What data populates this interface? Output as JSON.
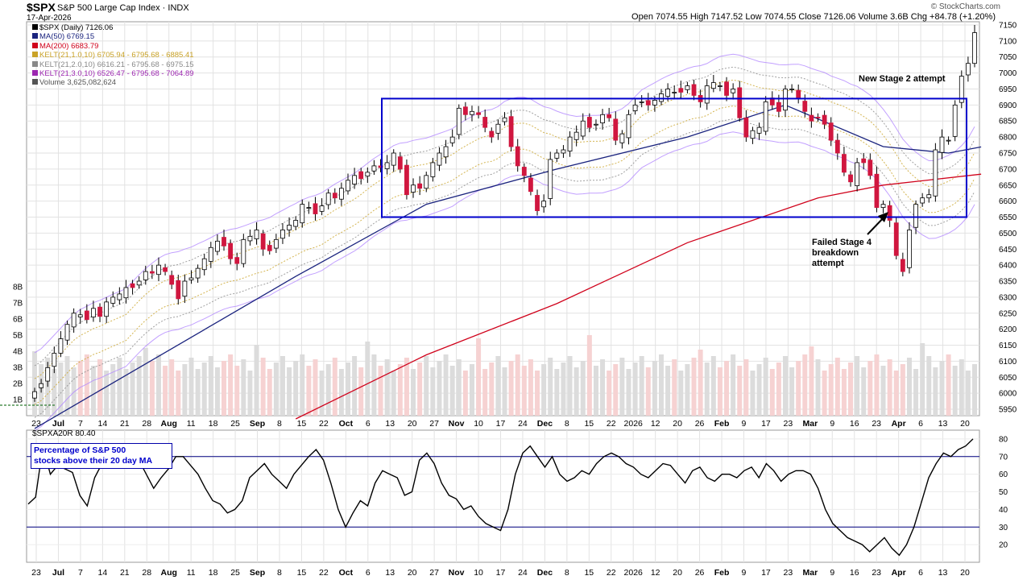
{
  "header": {
    "symbol": "$SPX",
    "name": "S&P 500 Large Cap Index",
    "exchange": "INDX",
    "date": "17-Apr-2026",
    "ohlc": "Open 7074.55  High 7147.52  Low 7074.55  Close 7126.06  Volume 3.6B  Chg +84.78 (+1.20%)",
    "brand": "© StockCharts.com"
  },
  "legend": [
    {
      "text": "$SPX (Daily) 7126.06",
      "color": "#000000",
      "icon": "candle-icon"
    },
    {
      "text": "MA(50) 6769.15",
      "color": "#1a237e",
      "icon": "line-icon"
    },
    {
      "text": "MA(200) 6683.79",
      "color": "#d0021b",
      "icon": "line-icon"
    },
    {
      "text": "KELT(21,1.0,10) 6705.94 - 6795.68 - 6885.41",
      "color": "#c9a227",
      "icon": "line-icon"
    },
    {
      "text": "KELT(21,2.0,10) 6616.21 - 6795.68 - 6975.15",
      "color": "#888888",
      "icon": "line-icon"
    },
    {
      "text": "KELT(21,3.0,10) 6526.47 - 6795.68 - 7064.89",
      "color": "#9c27b0",
      "icon": "line-icon"
    },
    {
      "text": "Volume 3,625,082,624",
      "color": "#555555",
      "icon": "bar-icon"
    }
  ],
  "annotations": {
    "stage2": "New Stage 2 attempt",
    "stage4_line1": "Failed Stage 4",
    "stage4_line2": "breakdown",
    "stage4_line3": "attempt"
  },
  "indicator": {
    "title": "$SPXA20R 80.40",
    "box_line1": "Percentage of S&P 500",
    "box_line2": "stocks above their 20 day MA"
  },
  "colors": {
    "up": "#ffffff",
    "down": "#d0163f",
    "ma50": "#1a237e",
    "ma200": "#d0021b",
    "kelt1": "#c9a227",
    "kelt2": "#888888",
    "kelt3": "#b388ff",
    "box": "#0000cc"
  },
  "chart_data": [
    {
      "type": "candlestick",
      "title": "$SPX (Daily) 7126.06",
      "ylim": [
        5930,
        7160
      ],
      "y_ticks": [
        5950,
        6000,
        6050,
        6100,
        6150,
        6200,
        6250,
        6300,
        6350,
        6400,
        6450,
        6500,
        6550,
        6600,
        6650,
        6700,
        6750,
        6800,
        6850,
        6900,
        6950,
        7000,
        7050,
        7100,
        7150
      ],
      "x_tick_labels": [
        "23",
        "Jul",
        "7",
        "14",
        "21",
        "28",
        "Aug",
        "11",
        "18",
        "25",
        "Sep",
        "8",
        "15",
        "22",
        "Oct",
        "6",
        "13",
        "20",
        "27",
        "Nov",
        "10",
        "17",
        "24",
        "Dec",
        "8",
        "15",
        "22",
        "2026",
        "12",
        "20",
        "26",
        "Feb",
        "9",
        "17",
        "23",
        "Mar",
        "9",
        "16",
        "23",
        "Apr",
        "6",
        "13",
        "20"
      ],
      "closes": [
        6005,
        6030,
        6080,
        6125,
        6170,
        6215,
        6250,
        6245,
        6230,
        6265,
        6240,
        6285,
        6300,
        6310,
        6330,
        6330,
        6350,
        6380,
        6375,
        6400,
        6380,
        6340,
        6295,
        6350,
        6360,
        6390,
        6420,
        6455,
        6475,
        6460,
        6420,
        6405,
        6480,
        6490,
        6510,
        6450,
        6445,
        6480,
        6510,
        6525,
        6540,
        6590,
        6580,
        6560,
        6585,
        6625,
        6610,
        6640,
        6665,
        6680,
        6670,
        6690,
        6710,
        6705,
        6720,
        6750,
        6700,
        6620,
        6650,
        6640,
        6680,
        6720,
        6750,
        6770,
        6800,
        6890,
        6870,
        6880,
        6870,
        6830,
        6800,
        6840,
        6860,
        6770,
        6710,
        6680,
        6630,
        6570,
        6600,
        6730,
        6750,
        6760,
        6800,
        6815,
        6850,
        6830,
        6840,
        6870,
        6860,
        6790,
        6810,
        6870,
        6900,
        6910,
        6900,
        6915,
        6935,
        6950,
        6940,
        6940,
        6960,
        6930,
        6910,
        6960,
        6970,
        6960,
        6930,
        6950,
        6860,
        6800,
        6820,
        6830,
        6910,
        6900,
        6880,
        6950,
        6950,
        6920,
        6880,
        6850,
        6860,
        6840,
        6790,
        6750,
        6690,
        6660,
        6720,
        6720,
        6680,
        6580,
        6590,
        6540,
        6430,
        6380,
        6510,
        6590,
        6610,
        6620,
        6760,
        6800,
        6790,
        6900,
        6990,
        7030,
        7126
      ],
      "ma50": {
        "x_start": 0,
        "values_by_index": {
          "0": 5890,
          "40": 6365,
          "60": 6590,
          "80": 6700,
          "100": 6800,
          "115": 6900,
          "130": 6770,
          "140": 6750,
          "145": 6769
        }
      },
      "ma200": {
        "x_start": 40,
        "values_by_index": {
          "40": 5920,
          "60": 6120,
          "80": 6280,
          "100": 6470,
          "120": 6610,
          "130": 6650,
          "145": 6684
        }
      },
      "annotations": [
        "New Stage 2 attempt",
        "Failed Stage 4 breakdown attempt"
      ],
      "range_box": {
        "from_x": "Oct 13",
        "to_x": "Apr 20",
        "y": [
          6550,
          6920
        ]
      }
    },
    {
      "type": "bar",
      "title": "Volume 3,625,082,624",
      "ylim": [
        0,
        8
      ],
      "y_ticks": [
        1,
        2,
        3,
        4,
        5,
        6,
        7,
        8
      ],
      "ylabel_suffix": "B"
    },
    {
      "type": "line",
      "title": "$SPXA20R 80.40",
      "ylim": [
        10,
        85
      ],
      "y_ticks": [
        20,
        30,
        40,
        50,
        60,
        70,
        80
      ],
      "reference_lines": [
        30,
        70
      ],
      "values": [
        43,
        47,
        76,
        60,
        65,
        63,
        61,
        48,
        42,
        58,
        66,
        72,
        73,
        66,
        70,
        68,
        60,
        52,
        58,
        63,
        70,
        70,
        65,
        60,
        52,
        45,
        43,
        38,
        40,
        45,
        58,
        62,
        66,
        60,
        56,
        52,
        60,
        65,
        70,
        74,
        68,
        55,
        40,
        30,
        38,
        45,
        42,
        55,
        62,
        60,
        58,
        48,
        50,
        68,
        72,
        66,
        55,
        48,
        46,
        40,
        42,
        36,
        32,
        30,
        28,
        40,
        60,
        72,
        76,
        70,
        64,
        70,
        60,
        56,
        58,
        62,
        60,
        66,
        70,
        72,
        70,
        66,
        64,
        60,
        58,
        62,
        66,
        65,
        60,
        55,
        62,
        64,
        58,
        56,
        60,
        60,
        58,
        62,
        64,
        58,
        66,
        62,
        56,
        60,
        62,
        62,
        60,
        52,
        40,
        32,
        28,
        24,
        22,
        20,
        16,
        20,
        24,
        18,
        14,
        20,
        30,
        44,
        58,
        66,
        72,
        70,
        74,
        76,
        80
      ]
    }
  ]
}
